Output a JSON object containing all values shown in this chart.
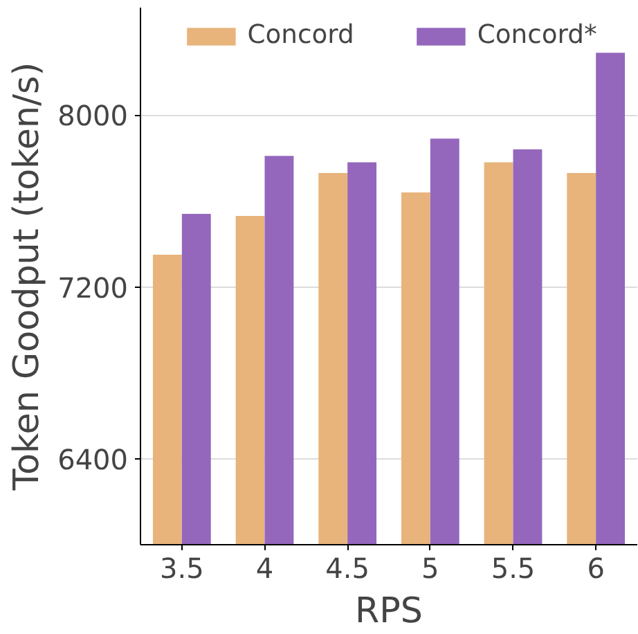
{
  "chart_data": {
    "type": "bar",
    "xlabel": "RPS",
    "ylabel": "Token Goodput (token/s)",
    "categories": [
      "3.5",
      "4",
      "4.5",
      "5",
      "5.5",
      "6"
    ],
    "series": [
      {
        "name": "Concord",
        "color": "#e8b47c",
        "values": [
          7350,
          7530,
          7730,
          7640,
          7780,
          7730
        ]
      },
      {
        "name": "Concord*",
        "color": "#9467bd",
        "values": [
          7540,
          7810,
          7780,
          7890,
          7840,
          8290
        ]
      }
    ],
    "ylim": [
      6000,
      8500
    ],
    "yticks": [
      6400,
      7200,
      8000
    ],
    "grid": "y",
    "legend": "top"
  }
}
